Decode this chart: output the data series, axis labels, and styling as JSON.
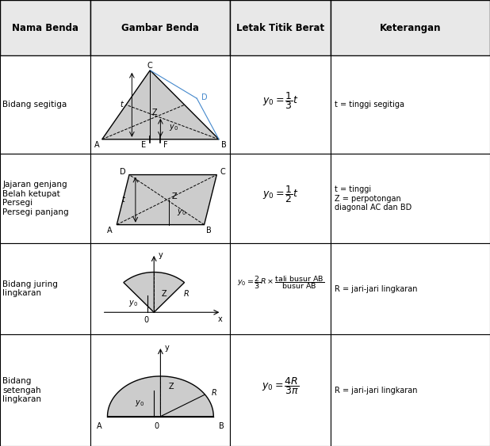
{
  "title_row": [
    "Nama Benda",
    "Gambar Benda",
    "Letak Titik Berat",
    "Keterangan"
  ],
  "bg_header": "#e8e8e8",
  "bg_cell": "#ffffff",
  "text_color": "#000000",
  "shape_fill": "#cccccc",
  "shape_stroke": "#000000",
  "blue_color": "#4488cc",
  "row_names": [
    "Bidang segitiga",
    "Jajaran genjang\nBelah ketupat\nPersegi\nPersegi panjang",
    "Bidang juring\nlingkaran",
    "Bidang\nsetengah\nlingkaran"
  ],
  "keterangan": [
    "t = tinggi segitiga",
    "t = tinggi\nZ = perpotongan\ndiagonal AC dan BD",
    "R = jari-jari lingkaran",
    "R = jari-jari lingkaran"
  ]
}
